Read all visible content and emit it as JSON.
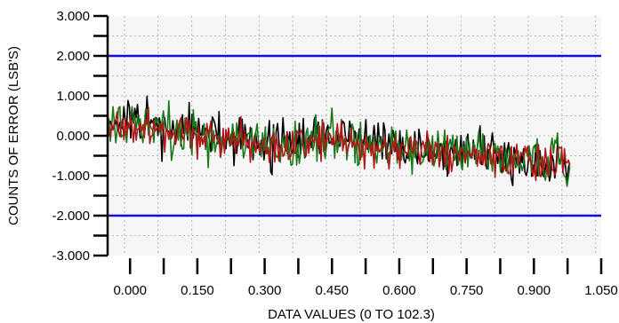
{
  "chart_data": {
    "type": "line",
    "title": "",
    "xlabel": "DATA VALUES (0 TO 102.3)",
    "ylabel": "COUNTS OF ERROR (LSB'S)",
    "xlim": [
      -0.05,
      1.05
    ],
    "ylim": [
      -3.0,
      3.0
    ],
    "x_ticks": [
      0.0,
      0.15,
      0.3,
      0.45,
      0.6,
      0.75,
      0.9,
      1.05
    ],
    "x_tick_labels": [
      "0.000",
      "0.150",
      "0.300",
      "0.450",
      "0.600",
      "0.750",
      "0.900",
      "1.050"
    ],
    "y_ticks": [
      3.0,
      2.0,
      1.0,
      0.0,
      -1.0,
      -2.0,
      -3.0
    ],
    "y_tick_labels": [
      "3.000",
      "2.000",
      "1.000",
      "0.000",
      "-1.000",
      "-2.000",
      "-3.000"
    ],
    "grid": true,
    "reference_lines": [
      {
        "y": 2.0,
        "color": "#1010d0"
      },
      {
        "y": -2.0,
        "color": "#1010d0"
      }
    ],
    "series": [
      {
        "color": "#000000",
        "x": [
          -0.05,
          0.0,
          0.05,
          0.1,
          0.15,
          0.2,
          0.25,
          0.3,
          0.35,
          0.4,
          0.45,
          0.5,
          0.55,
          0.6,
          0.65,
          0.7,
          0.75,
          0.8,
          0.85,
          0.9,
          0.95,
          0.98
        ],
        "y": [
          0.4,
          0.3,
          0.25,
          0.15,
          0.1,
          -0.05,
          -0.1,
          -0.2,
          -0.2,
          -0.1,
          0.0,
          -0.05,
          -0.2,
          -0.3,
          -0.3,
          -0.35,
          -0.4,
          -0.5,
          -0.5,
          -0.6,
          -0.65,
          -0.7
        ],
        "noise": 0.45
      },
      {
        "color": "#1a7a1a",
        "x": [
          -0.05,
          0.0,
          0.05,
          0.1,
          0.15,
          0.2,
          0.25,
          0.3,
          0.35,
          0.4,
          0.45,
          0.5,
          0.55,
          0.6,
          0.65,
          0.7,
          0.75,
          0.8,
          0.85,
          0.9,
          0.95,
          0.98
        ],
        "y": [
          0.3,
          0.25,
          0.2,
          0.1,
          0.05,
          -0.05,
          -0.15,
          -0.25,
          -0.2,
          -0.15,
          -0.05,
          -0.1,
          -0.25,
          -0.3,
          -0.35,
          -0.35,
          -0.45,
          -0.5,
          -0.55,
          -0.6,
          -0.6,
          -0.75
        ],
        "noise": 0.45
      },
      {
        "color": "#b01818",
        "x": [
          -0.05,
          0.0,
          0.05,
          0.1,
          0.15,
          0.2,
          0.25,
          0.3,
          0.35,
          0.4,
          0.45,
          0.5,
          0.55,
          0.6,
          0.65,
          0.7,
          0.75,
          0.8,
          0.85,
          0.9,
          0.95,
          0.98
        ],
        "y": [
          0.2,
          0.2,
          0.15,
          0.05,
          0.0,
          -0.1,
          -0.15,
          -0.25,
          -0.25,
          -0.15,
          -0.05,
          -0.15,
          -0.25,
          -0.35,
          -0.35,
          -0.4,
          -0.45,
          -0.5,
          -0.55,
          -0.6,
          -0.65,
          -0.7
        ],
        "noise": 0.4
      }
    ],
    "colors": {
      "plot_background": "#f6f6f6",
      "grid": "#b8b8b8",
      "axis": "#000000"
    }
  }
}
